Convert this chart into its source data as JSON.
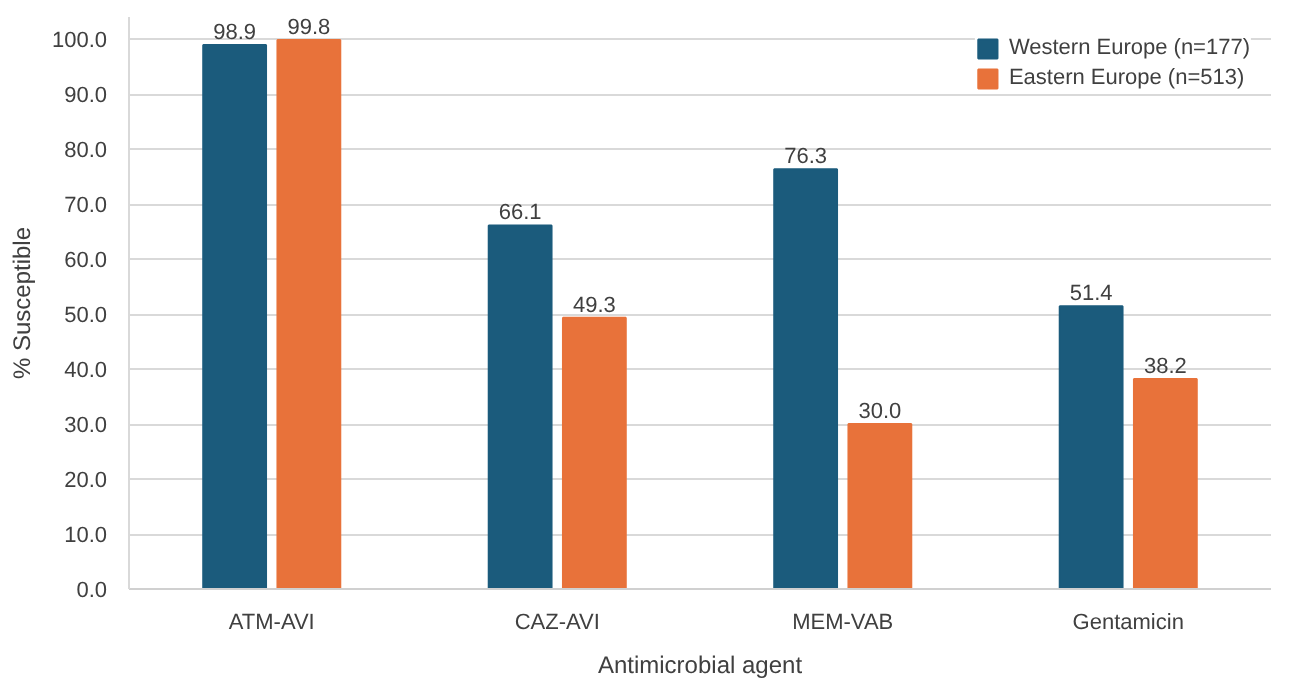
{
  "chart_data": {
    "type": "bar",
    "xlabel": "Antimicrobial agent",
    "ylabel": "% Susceptible",
    "categories": [
      "ATM-AVI",
      "CAZ-AVI",
      "MEM-VAB",
      "Gentamicin"
    ],
    "series": [
      {
        "name": "Western Europe (n=177)",
        "color": "#1b5b7c",
        "values": [
          98.9,
          66.1,
          76.3,
          51.4
        ],
        "value_labels": [
          "98.9",
          "66.1",
          "76.3",
          "51.4"
        ]
      },
      {
        "name": "Eastern Europe (n=513)",
        "color": "#e8723a",
        "values": [
          99.8,
          49.3,
          30.0,
          38.2
        ],
        "value_labels": [
          "99.8",
          "49.3",
          "30.0",
          "38.2"
        ]
      }
    ],
    "ylim": [
      0,
      104
    ],
    "yticks": [
      {
        "value": 0,
        "label": "0.0"
      },
      {
        "value": 10,
        "label": "10.0"
      },
      {
        "value": 20,
        "label": "20.0"
      },
      {
        "value": 30,
        "label": "30.0"
      },
      {
        "value": 40,
        "label": "40.0"
      },
      {
        "value": 50,
        "label": "50.0"
      },
      {
        "value": 60,
        "label": "60.0"
      },
      {
        "value": 70,
        "label": "70.0"
      },
      {
        "value": 80,
        "label": "80.0"
      },
      {
        "value": 90,
        "label": "90.0"
      },
      {
        "value": 100,
        "label": "100.0"
      }
    ],
    "grid": "y",
    "legend": "top right"
  }
}
